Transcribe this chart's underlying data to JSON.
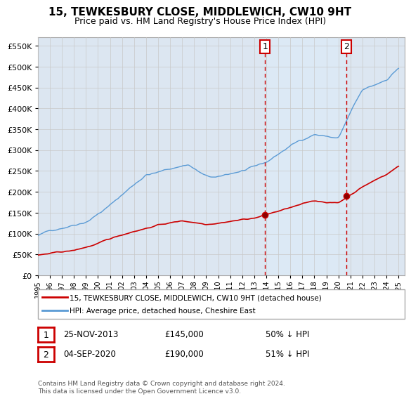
{
  "title": "15, TEWKESBURY CLOSE, MIDDLEWICH, CW10 9HT",
  "subtitle": "Price paid vs. HM Land Registry's House Price Index (HPI)",
  "sale1_date": "25-NOV-2013",
  "sale1_price": 145000,
  "sale1_year": 2013.9,
  "sale2_date": "04-SEP-2020",
  "sale2_price": 190000,
  "sale2_year": 2020.67,
  "legend_line1": "15, TEWKESBURY CLOSE, MIDDLEWICH, CW10 9HT (detached house)",
  "legend_line2": "HPI: Average price, detached house, Cheshire East",
  "sale1_hpi_pct": "50% ↓ HPI",
  "sale2_hpi_pct": "51% ↓ HPI",
  "footer": "Contains HM Land Registry data © Crown copyright and database right 2024.\nThis data is licensed under the Open Government Licence v3.0.",
  "price_color": "#cc0000",
  "hpi_color": "#5b9bd5",
  "shade_color": "#dce9f5",
  "background_color": "#dce6f1",
  "plot_bg": "#ffffff",
  "grid_color": "#c8c8c8",
  "ylim": [
    0,
    570000
  ],
  "xlim_start": 1995.0,
  "xlim_end": 2025.5
}
